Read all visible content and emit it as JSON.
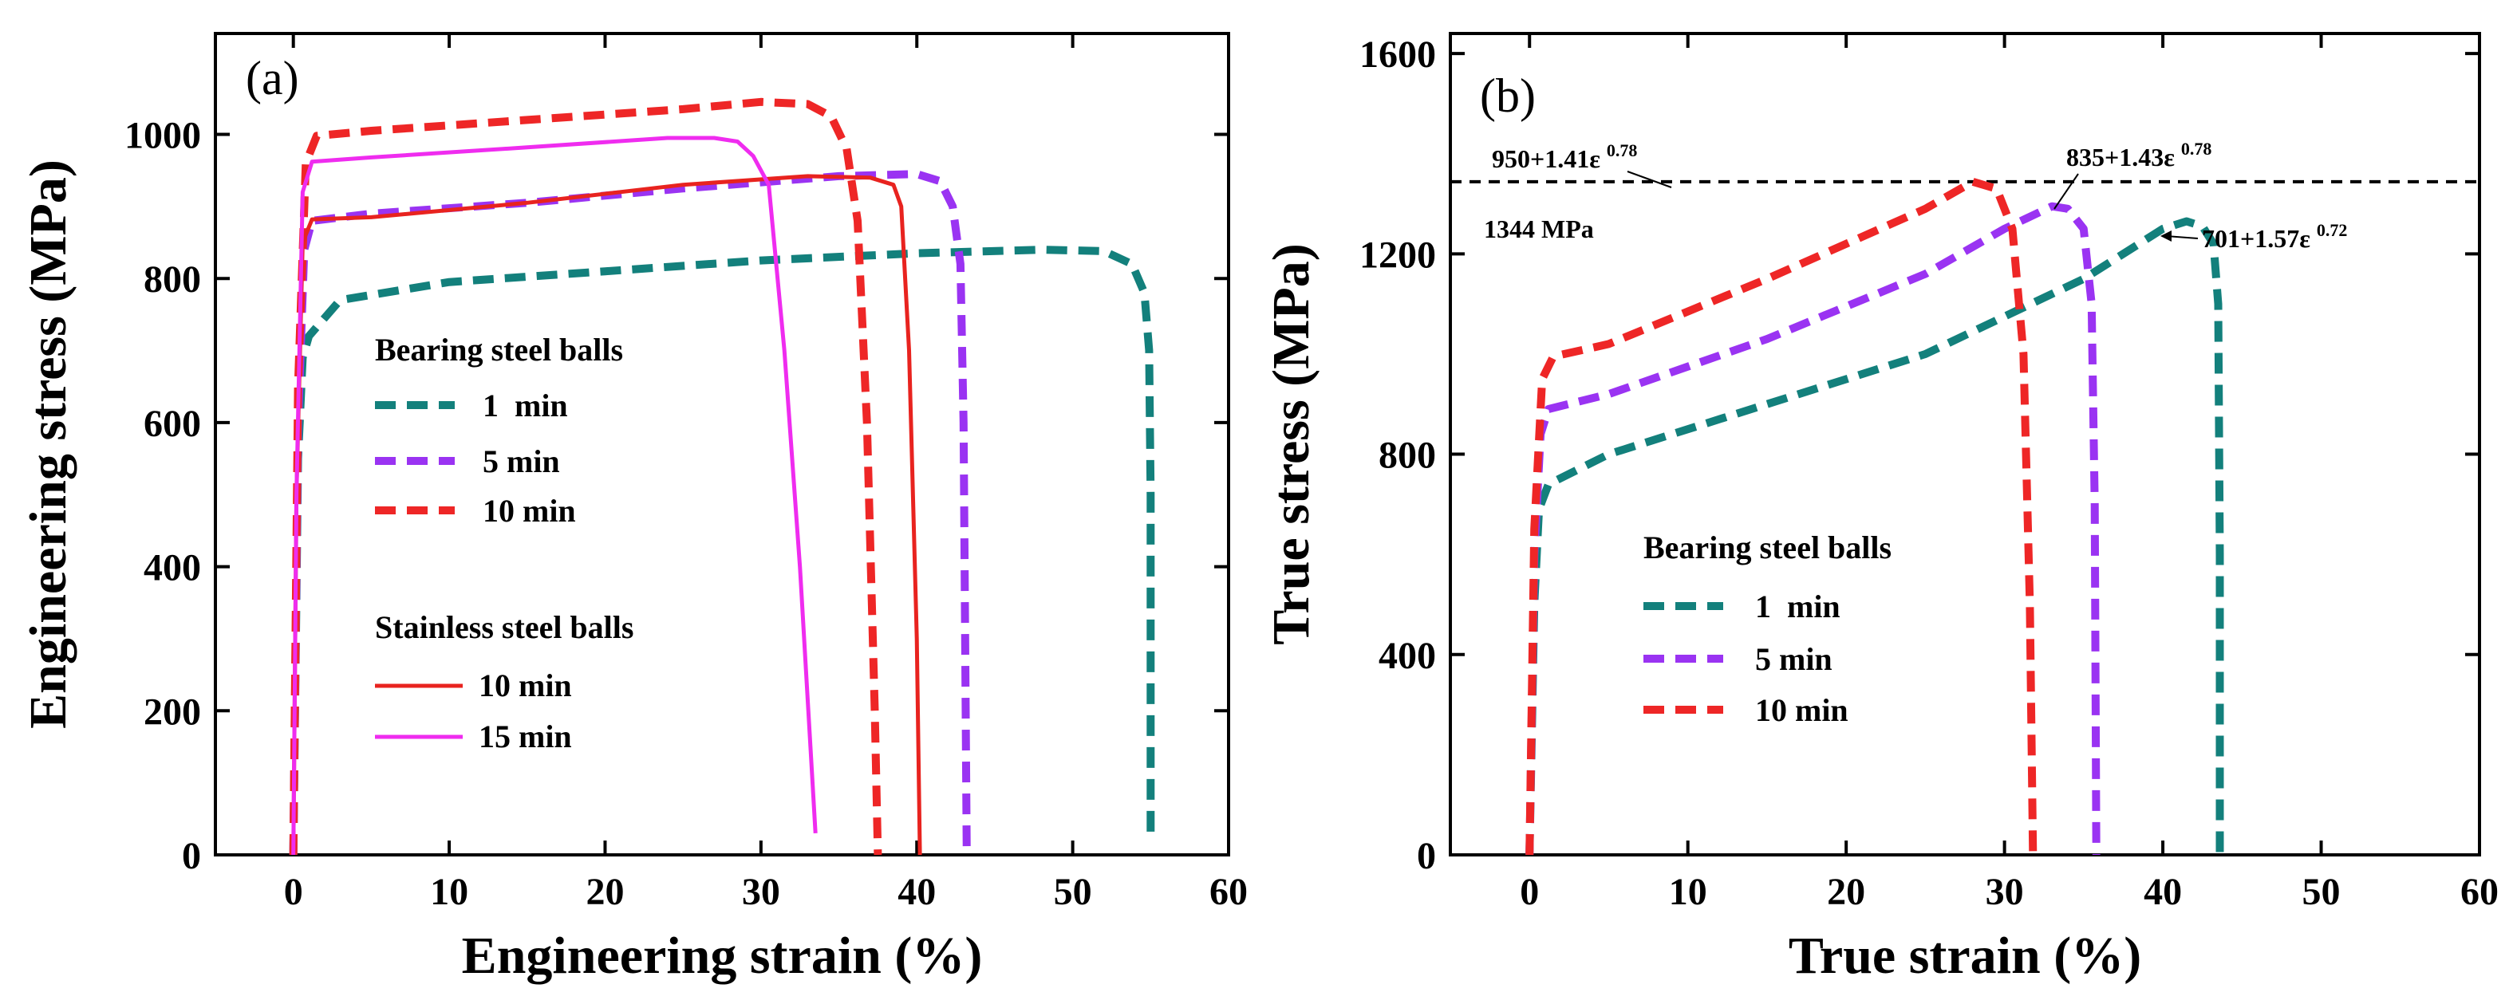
{
  "chart_data": [
    {
      "type": "line",
      "panel_label": "(a)",
      "xlabel": "Engineering strain (%)",
      "ylabel": "Engineering stress (MPa)",
      "xlim": [
        -5,
        60
      ],
      "ylim": [
        0,
        1140
      ],
      "xticks": [
        0,
        10,
        20,
        30,
        40,
        50,
        60
      ],
      "yticks": [
        0,
        200,
        400,
        600,
        800,
        1000
      ],
      "legend_groups": [
        {
          "title": "Bearing steel balls",
          "entries": [
            0,
            1,
            2
          ]
        },
        {
          "title": "Stainless steel balls",
          "entries": [
            3,
            4
          ]
        }
      ],
      "series": [
        {
          "name": "1  min",
          "color": "#13807c",
          "style": "dashed",
          "points": [
            [
              0,
              0
            ],
            [
              0.3,
              550
            ],
            [
              0.6,
              690
            ],
            [
              1,
              720
            ],
            [
              3,
              770
            ],
            [
              10,
              795
            ],
            [
              20,
              810
            ],
            [
              30,
              825
            ],
            [
              40,
              835
            ],
            [
              48,
              840
            ],
            [
              52,
              838
            ],
            [
              53.8,
              820
            ],
            [
              54.6,
              780
            ],
            [
              54.9,
              700
            ],
            [
              55,
              500
            ],
            [
              55,
              30
            ]
          ]
        },
        {
          "name": "5 min",
          "color": "#9a33f2",
          "style": "dashed",
          "points": [
            [
              0,
              0
            ],
            [
              0.3,
              600
            ],
            [
              0.7,
              840
            ],
            [
              1.2,
              880
            ],
            [
              5,
              890
            ],
            [
              15,
              905
            ],
            [
              25,
              925
            ],
            [
              35,
              942
            ],
            [
              40,
              945
            ],
            [
              41.5,
              935
            ],
            [
              42.3,
              900
            ],
            [
              42.8,
              820
            ],
            [
              43,
              600
            ],
            [
              43.2,
              0
            ]
          ]
        },
        {
          "name": "10 min",
          "color": "#ee2626",
          "style": "dashed",
          "points": [
            [
              0,
              0
            ],
            [
              0.3,
              650
            ],
            [
              0.8,
              960
            ],
            [
              1.5,
              998
            ],
            [
              5,
              1005
            ],
            [
              15,
              1020
            ],
            [
              25,
              1035
            ],
            [
              30,
              1045
            ],
            [
              33,
              1042
            ],
            [
              34.5,
              1025
            ],
            [
              35.5,
              980
            ],
            [
              36.2,
              880
            ],
            [
              36.8,
              600
            ],
            [
              37.3,
              200
            ],
            [
              37.5,
              0
            ]
          ]
        },
        {
          "name": "10 min",
          "color": "#e8231f",
          "style": "solid",
          "points": [
            [
              0,
              0
            ],
            [
              0.2,
              500
            ],
            [
              0.6,
              850
            ],
            [
              1.2,
              882
            ],
            [
              5,
              885
            ],
            [
              15,
              905
            ],
            [
              25,
              930
            ],
            [
              33,
              942
            ],
            [
              37,
              940
            ],
            [
              38.5,
              930
            ],
            [
              39,
              900
            ],
            [
              39.5,
              700
            ],
            [
              40,
              300
            ],
            [
              40.2,
              0
            ]
          ]
        },
        {
          "name": "15 min",
          "color": "#ef2cef",
          "style": "solid",
          "points": [
            [
              0,
              0
            ],
            [
              0.2,
              500
            ],
            [
              0.6,
              920
            ],
            [
              1.2,
              962
            ],
            [
              5,
              968
            ],
            [
              15,
              982
            ],
            [
              24,
              995
            ],
            [
              27,
              995
            ],
            [
              28.5,
              990
            ],
            [
              29.5,
              970
            ],
            [
              30.5,
              930
            ],
            [
              31.5,
              700
            ],
            [
              32.5,
              400
            ],
            [
              33.5,
              30
            ]
          ]
        }
      ]
    },
    {
      "type": "line",
      "panel_label": "(b)",
      "xlabel": "True strain (%)",
      "ylabel": "True stress (MPa)",
      "xlim": [
        -5,
        60
      ],
      "ylim": [
        0,
        1640
      ],
      "xticks": [
        0,
        10,
        20,
        30,
        40,
        50,
        60
      ],
      "yticks": [
        0,
        400,
        800,
        1200,
        1600
      ],
      "legend_title": "Bearing steel balls",
      "reference_line": {
        "value": 1344,
        "label": "1344 MPa"
      },
      "annotations": [
        {
          "base": "950+1.41ε",
          "exp": "0.78"
        },
        {
          "base": "835+1.43ε",
          "exp": "0.78"
        },
        {
          "base": "701+1.57ε",
          "exp": "0.72"
        }
      ],
      "series": [
        {
          "name": "1  min",
          "color": "#13807c",
          "style": "dashed",
          "points": [
            [
              0,
              0
            ],
            [
              0.3,
              500
            ],
            [
              0.6,
              690
            ],
            [
              1.2,
              740
            ],
            [
              5,
              800
            ],
            [
              15,
              900
            ],
            [
              25,
              1000
            ],
            [
              35,
              1150
            ],
            [
              40,
              1250
            ],
            [
              41.5,
              1265
            ],
            [
              42.5,
              1255
            ],
            [
              43.2,
              1220
            ],
            [
              43.5,
              1100
            ],
            [
              43.6,
              600
            ],
            [
              43.6,
              0
            ]
          ]
        },
        {
          "name": "5 min",
          "color": "#9a33f2",
          "style": "dashed",
          "points": [
            [
              0,
              0
            ],
            [
              0.3,
              600
            ],
            [
              0.7,
              840
            ],
            [
              1.2,
              890
            ],
            [
              5,
              920
            ],
            [
              15,
              1030
            ],
            [
              25,
              1160
            ],
            [
              30,
              1250
            ],
            [
              33,
              1295
            ],
            [
              34,
              1290
            ],
            [
              35,
              1250
            ],
            [
              35.5,
              1100
            ],
            [
              35.7,
              700
            ],
            [
              35.8,
              0
            ]
          ]
        },
        {
          "name": "10 min",
          "color": "#ee2626",
          "style": "dashed",
          "points": [
            [
              0,
              0
            ],
            [
              0.3,
              650
            ],
            [
              0.8,
              950
            ],
            [
              1.5,
              995
            ],
            [
              5,
              1020
            ],
            [
              15,
              1150
            ],
            [
              25,
              1290
            ],
            [
              28,
              1344
            ],
            [
              29.5,
              1330
            ],
            [
              30.5,
              1250
            ],
            [
              31.2,
              1000
            ],
            [
              31.6,
              500
            ],
            [
              31.8,
              0
            ]
          ]
        }
      ]
    }
  ]
}
